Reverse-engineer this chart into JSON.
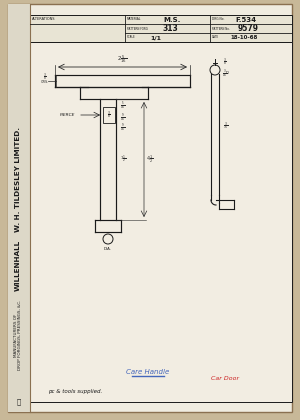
{
  "bg_color": "#c8b898",
  "paper_color": "#f0ece0",
  "spine_color": "#ddd8c8",
  "header_color": "#e8e4d4",
  "line_color": "#1a1a1a",
  "dim_color": "#2a2a2a",
  "blue_color": "#4466bb",
  "red_color": "#cc2222",
  "header_material": "M.S.",
  "header_drg_no": "F.534",
  "header_pattern": "313",
  "header_pattern_no": "9579",
  "header_scale": "1/1",
  "header_date": "18-10-68",
  "note_blue": "Care Handle",
  "note_red": "Car Door",
  "note_bottom": "pc & tools supplied."
}
